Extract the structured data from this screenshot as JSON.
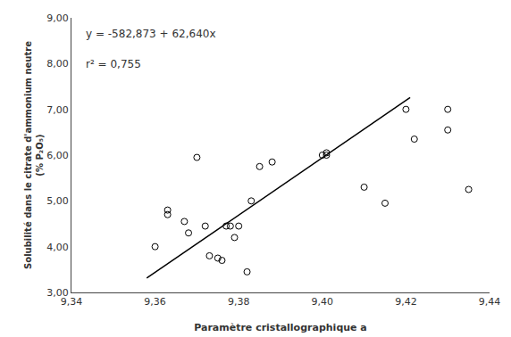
{
  "chart_data": {
    "type": "scatter",
    "xlabel": "Paramètre cristallographique a",
    "ylabel": "Solubilité dans le citrate d'ammonium neutre\n(% P₂O₅)",
    "annotations": [
      "y = -582,873 + 62,640x",
      "r² = 0,755"
    ],
    "series": [
      {
        "type": "scatter",
        "marker": "circle-open",
        "color": "black",
        "x": [
          9.36,
          9.363,
          9.363,
          9.367,
          9.368,
          9.37,
          9.372,
          9.373,
          9.375,
          9.376,
          9.377,
          9.378,
          9.379,
          9.38,
          9.382,
          9.383,
          9.385,
          9.388,
          9.4,
          9.401,
          9.401,
          9.41,
          9.415,
          9.42,
          9.422,
          9.43,
          9.43,
          9.435
        ],
        "values": [
          4.0,
          4.7,
          4.8,
          4.55,
          4.3,
          5.95,
          4.45,
          3.8,
          3.75,
          3.7,
          4.45,
          4.45,
          4.2,
          4.45,
          3.45,
          5.0,
          5.75,
          5.85,
          6.0,
          6.0,
          6.05,
          5.3,
          4.95,
          7.0,
          6.35,
          7.0,
          6.55,
          5.25
        ]
      },
      {
        "type": "line",
        "line_style": "solid",
        "color": "black",
        "x": [
          9.358,
          9.421
        ],
        "values": [
          3.31212,
          7.25844
        ]
      }
    ],
    "xlim": [
      9.34,
      9.44
    ],
    "ylim": [
      3.0,
      9.0
    ],
    "xticks": [
      {
        "value": 9.34,
        "label": "9,34"
      },
      {
        "value": 9.36,
        "label": "9,36"
      },
      {
        "value": 9.38,
        "label": "9,38"
      },
      {
        "value": 9.4,
        "label": "9,40"
      },
      {
        "value": 9.42,
        "label": "9,42"
      },
      {
        "value": 9.44,
        "label": "9,44"
      }
    ],
    "yticks": [
      {
        "value": 3.0,
        "label": "3,00"
      },
      {
        "value": 4.0,
        "label": "4,00"
      },
      {
        "value": 5.0,
        "label": "5,00"
      },
      {
        "value": 6.0,
        "label": "6,00"
      },
      {
        "value": 7.0,
        "label": "7,00"
      },
      {
        "value": 8.0,
        "label": "8,00"
      },
      {
        "value": 9.0,
        "label": "9,00"
      }
    ],
    "grid": false,
    "background_color": "white"
  }
}
